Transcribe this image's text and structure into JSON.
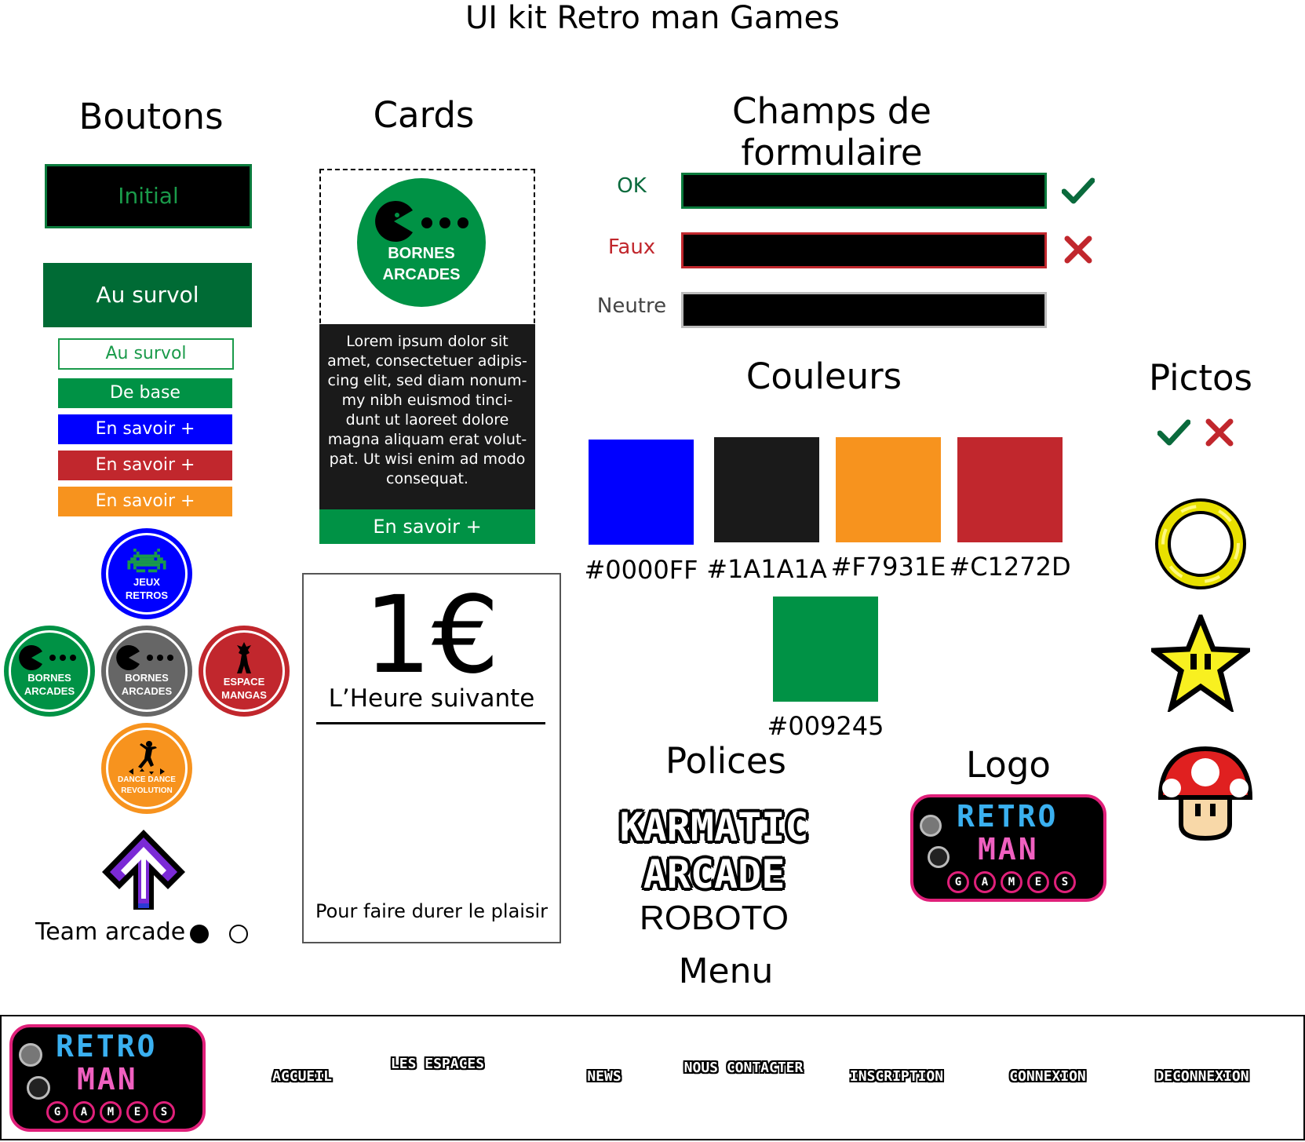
{
  "title": "UI kit Retro man Games",
  "sections": {
    "buttons": "Boutons",
    "cards": "Cards",
    "form_fields": "Champs de formulaire",
    "colors": "Couleurs",
    "pictos": "Pictos",
    "fonts": "Polices",
    "logo": "Logo"
  },
  "buttons": {
    "initial": "Initial",
    "hover_dark": "Au survol",
    "hover_outline": "Au survol",
    "base": "De base",
    "more_blue": "En savoir +",
    "more_red": "En savoir +",
    "more_orange": "En savoir +"
  },
  "circles": {
    "jeux_retros": [
      "JEUX",
      "RETROS"
    ],
    "bornes_green": [
      "BORNES",
      "ARCADES"
    ],
    "bornes_grey": [
      "BORNES",
      "ARCADES"
    ],
    "espace_mangas": [
      "ESPACE",
      "MANGAS"
    ],
    "dance": [
      "DANCE DANCE",
      "REVOLUTION"
    ]
  },
  "team_arcade": "Team arcade",
  "card": {
    "badge_line1": "BORNES",
    "badge_line2": "ARCADES",
    "text_lines": [
      "Lorem ipsum dolor sit",
      "amet, consectetuer adipis-",
      "cing elit, sed diam nonum-",
      "my nibh euismod tinci-",
      "dunt ut laoreet dolore",
      "magna aliquam erat volut-",
      "pat. Ut wisi enim ad modo",
      "consequat."
    ],
    "button": "En savoir +"
  },
  "price_card": {
    "price": "1€",
    "subtitle": "L’Heure suivante",
    "footer": "Pour faire durer le plaisir"
  },
  "form": {
    "ok_label": "OK",
    "false_label": "Faux",
    "neutral_label": "Neutre"
  },
  "colors": [
    {
      "hex": "#0000FF",
      "label": "#0000FF"
    },
    {
      "hex": "#1A1A1A",
      "label": "#1A1A1A"
    },
    {
      "hex": "#F7931E",
      "label": "#F7931E"
    },
    {
      "hex": "#C1272D",
      "label": "#C1272D"
    },
    {
      "hex": "#009245",
      "label": "#009245"
    }
  ],
  "fonts_list": {
    "karmatic_1": "KARMATIC",
    "karmatic_2": "ARCADE",
    "roboto": "ROBOTO",
    "menu": "Menu"
  },
  "logo": {
    "retro": "RETRO",
    "man": "MAN",
    "games": [
      "G",
      "A",
      "M",
      "E",
      "S"
    ]
  },
  "nav": {
    "items": [
      "ACCUEIL",
      "LES ESPACES",
      "NEWS",
      "NOUS CONTACTER",
      "INSCRIPTION",
      "CONNEXION",
      "DECONNEXION"
    ]
  },
  "icons": {
    "check": "check-icon",
    "cross": "cross-icon",
    "ring": "ring-icon",
    "star": "star-icon",
    "mushroom": "mushroom-icon"
  }
}
